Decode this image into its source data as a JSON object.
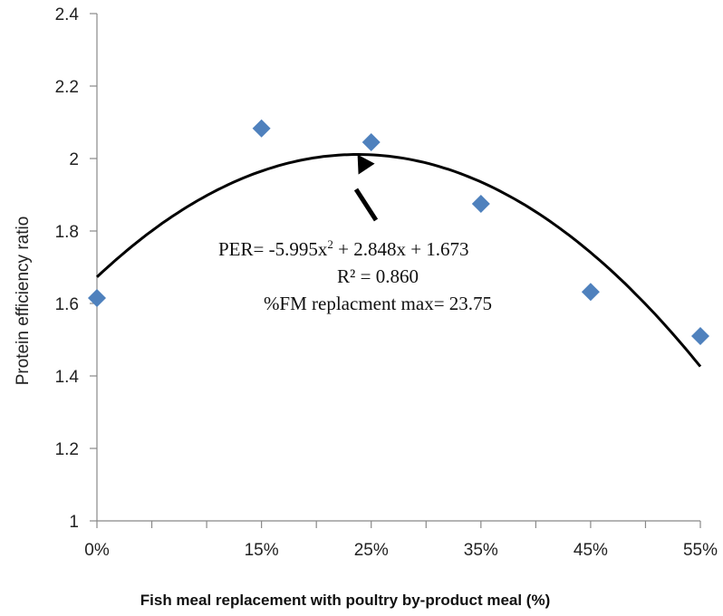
{
  "chart_data": {
    "type": "scatter",
    "title": "",
    "xlabel": "Fish meal replacement with poultry by-product meal (%)",
    "ylabel": "Protein efficiency ratio",
    "xlim": [
      0,
      0.55
    ],
    "ylim": [
      1,
      2.4
    ],
    "x_ticks": [
      0,
      0.15,
      0.25,
      0.35,
      0.45,
      0.55
    ],
    "x_tick_labels": [
      "0%",
      "15%",
      "25%",
      "35%",
      "45%",
      "55%"
    ],
    "y_ticks": [
      1,
      1.2,
      1.4,
      1.6,
      1.8,
      2,
      2.2,
      2.4
    ],
    "y_tick_labels": [
      "1",
      "1.2",
      "1.4",
      "1.6",
      "1.8",
      "2",
      "2.2",
      "2.4"
    ],
    "grid": false,
    "series": [
      {
        "marker": "diamond",
        "color": "#4f81bd",
        "x": [
          0,
          0.15,
          0.25,
          0.35,
          0.45,
          0.55
        ],
        "y": [
          1.615,
          2.083,
          2.045,
          1.875,
          1.632,
          1.51
        ]
      }
    ],
    "trendline": {
      "type": "polynomial",
      "color": "#000000",
      "coefficients": {
        "a": -5.995,
        "b": 2.848,
        "c": 1.673
      }
    },
    "annotations": {
      "line1_prefix": "PER= -5.995x",
      "line1_sup": "2",
      "line1_suffix": " + 2.848x + 1.673",
      "line2": "R² = 0.860",
      "line3": "%FM replacment max= 23.75",
      "arrow_target": {
        "x": 0.2375,
        "y": 2.011
      }
    }
  }
}
